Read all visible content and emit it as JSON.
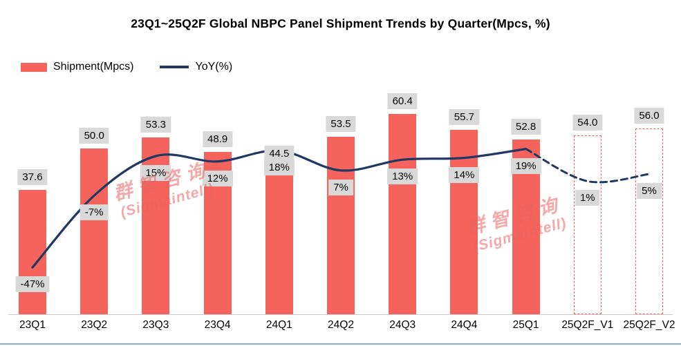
{
  "title": "23Q1~25Q2F Global NBPC Panel Shipment Trends by Quarter(Mpcs, %)",
  "legend": [
    {
      "label": "Shipment(Mpcs)",
      "type": "bar"
    },
    {
      "label": "YoY(%)",
      "type": "line"
    }
  ],
  "watermark": {
    "line1": "群智咨询",
    "line2": "(Sigmaintell)"
  },
  "colors": {
    "bar": "#f4645d",
    "line": "#1f3864",
    "label_bg": "#d9d9d9",
    "forecast_border": "#f4645d",
    "baseline": "#c9c9c9",
    "bottom_rule": "#8faadc",
    "watermark": "rgba(234,99,99,0.55)"
  },
  "chart_data": {
    "type": "bar",
    "title": "23Q1~25Q2F Global NBPC Panel Shipment Trends by Quarter(Mpcs, %)",
    "categories": [
      "23Q1",
      "23Q2",
      "23Q3",
      "23Q4",
      "24Q1",
      "24Q2",
      "24Q3",
      "24Q4",
      "25Q1",
      "25Q2F_V1",
      "25Q2F_V2"
    ],
    "series": [
      {
        "name": "Shipment(Mpcs)",
        "type": "bar",
        "values": [
          37.6,
          50.0,
          53.3,
          48.9,
          44.5,
          53.5,
          60.4,
          55.7,
          52.8,
          54.0,
          56.0
        ],
        "labels": [
          "37.6",
          "50.0",
          "53.3",
          "48.9",
          "44.5",
          "53.5",
          "60.4",
          "55.7",
          "52.8",
          "54.0",
          "56.0"
        ],
        "forecast_from_index": 9
      },
      {
        "name": "YoY(%)",
        "type": "line",
        "values": [
          -47,
          -7,
          15,
          12,
          18,
          7,
          13,
          14,
          19,
          1,
          5
        ],
        "labels": [
          "-47%",
          "-7%",
          "15%",
          "12%",
          "18%",
          "7%",
          "13%",
          "14%",
          "19%",
          "1%",
          "5%"
        ],
        "forecast_from_index": 9
      }
    ],
    "xlabel": "",
    "ylabel": "",
    "value_axis_range_mpcs": [
      0,
      70
    ],
    "yoy_axis_range_pct": [
      -60,
      30
    ],
    "gridlines": false,
    "legend_position": "top-left",
    "data_labels_shown": true,
    "forecast_style": "dashed-outline-bars-and-dashed-line"
  }
}
